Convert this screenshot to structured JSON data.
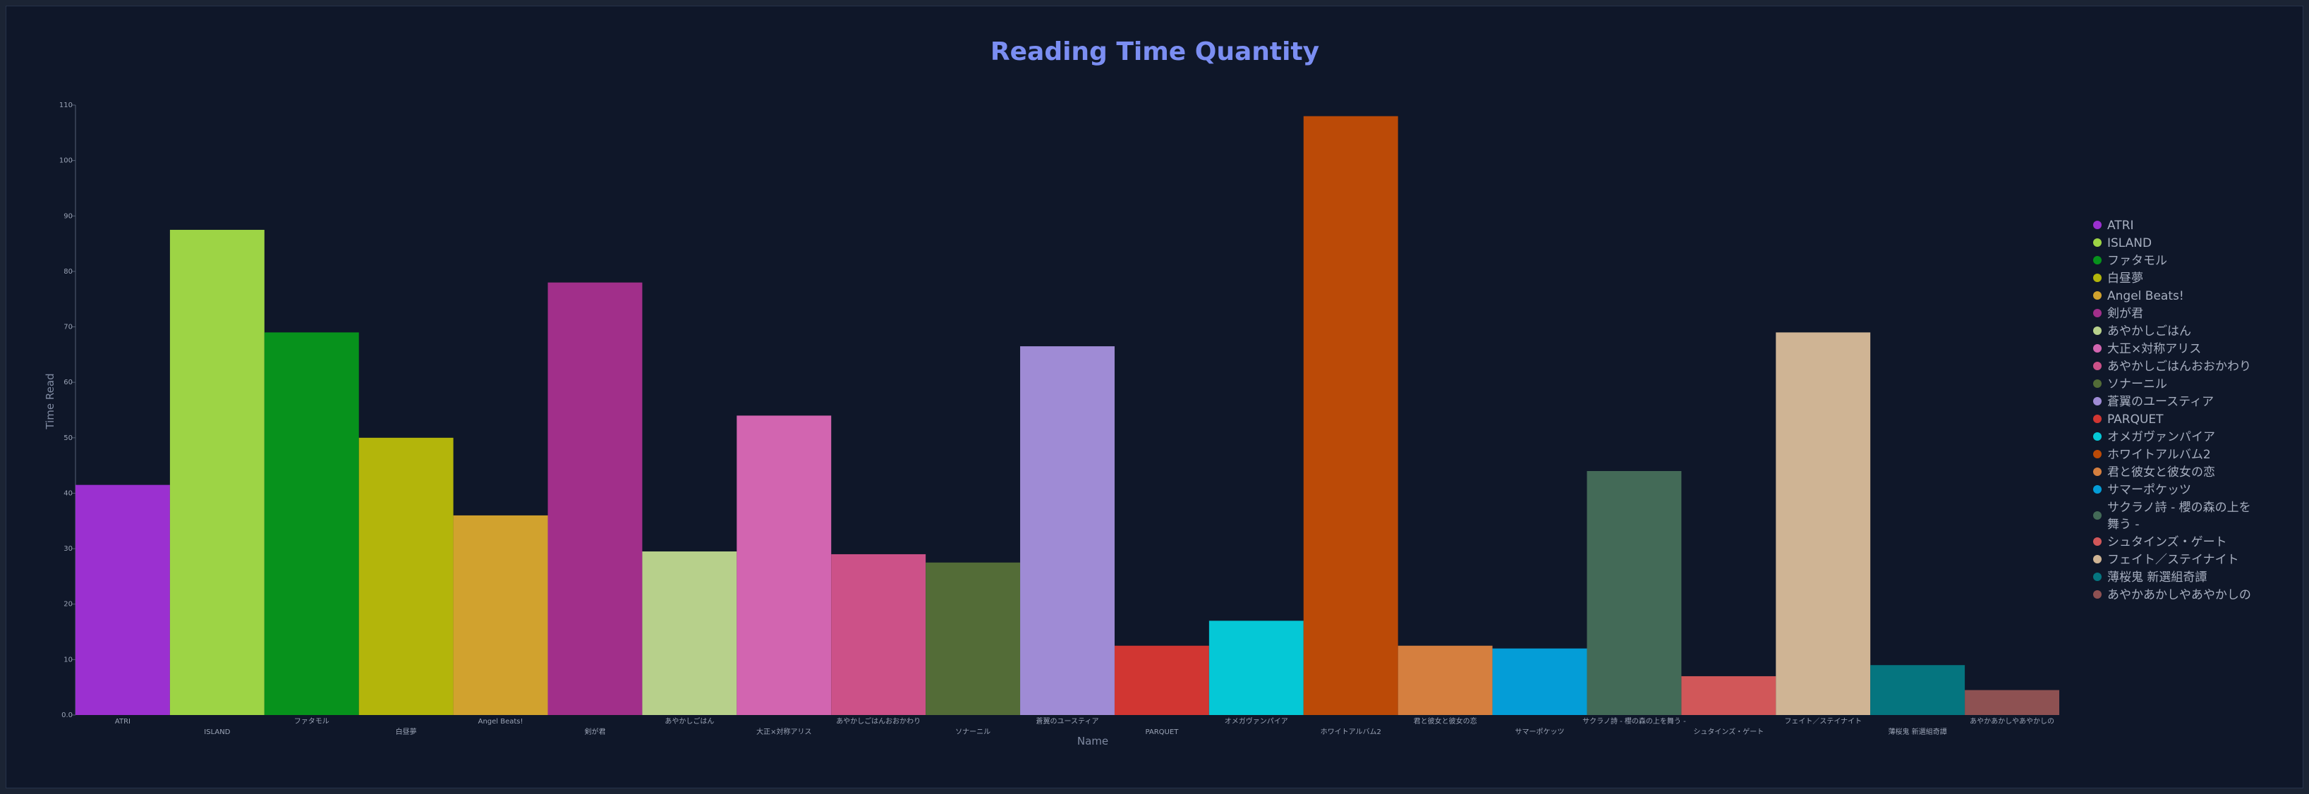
{
  "chart_data": {
    "type": "bar",
    "title": "Reading Time Quantity",
    "xlabel": "Name",
    "ylabel": "Time Read",
    "ylim": [
      0,
      110
    ],
    "yticks": [
      "0.0",
      "10",
      "20",
      "30",
      "40",
      "50",
      "60",
      "70",
      "80",
      "90",
      "100",
      "110"
    ],
    "legend_position": "right",
    "grid": false,
    "categories": [
      "ATRI",
      "ISLAND",
      "ファタモル",
      "白昼夢",
      "Angel Beats!",
      "剣が君",
      "あやかしごはん",
      "大正×対称アリス",
      "あやかしごはんおおかわり",
      "ソナーニル",
      "蒼翼のユースティア",
      "PARQUET",
      "オメガヴァンパイア",
      "ホワイトアルバム2",
      "君と彼女と彼女の恋",
      "サマーポケッツ",
      "サクラノ詩 - 櫻の森の上を舞う -",
      "シュタインズ・ゲート",
      "フェイト／ステイナイト",
      "薄桜鬼 新選組奇譚",
      "あやかあかしやあやかしの"
    ],
    "values": [
      41.5,
      87.5,
      69,
      50,
      36,
      78,
      29.5,
      54,
      29,
      27.5,
      66.5,
      12.5,
      17,
      108,
      12.5,
      12,
      44,
      7,
      69,
      9,
      4.5
    ],
    "colors": [
      "#9b30d0",
      "#9dd445",
      "#07921c",
      "#b3b50b",
      "#d1a22e",
      "#a12f8a",
      "#b7d08b",
      "#d265b0",
      "#cc5188",
      "#536c37",
      "#9f8bd5",
      "#d13632",
      "#05c8d6",
      "#bb4a07",
      "#d57f3f",
      "#049dd7",
      "#436a57",
      "#d15759",
      "#cfb494",
      "#05757f",
      "#8e5152"
    ]
  }
}
